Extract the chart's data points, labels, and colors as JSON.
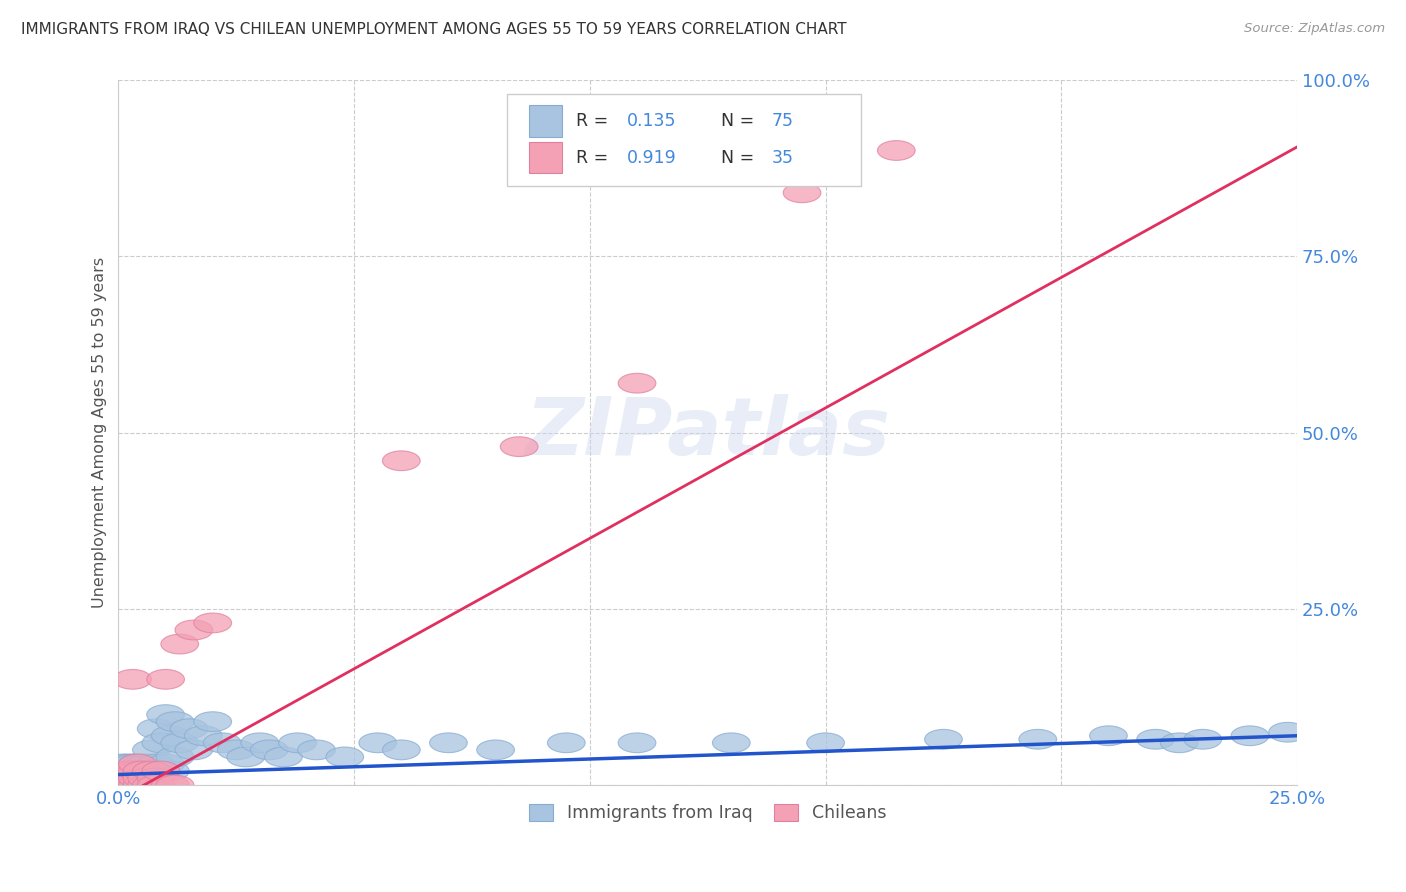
{
  "title": "IMMIGRANTS FROM IRAQ VS CHILEAN UNEMPLOYMENT AMONG AGES 55 TO 59 YEARS CORRELATION CHART",
  "source": "Source: ZipAtlas.com",
  "ylabel": "Unemployment Among Ages 55 to 59 years",
  "xlim": [
    0.0,
    0.25
  ],
  "ylim": [
    0.0,
    1.0
  ],
  "xticks": [
    0.0,
    0.05,
    0.1,
    0.15,
    0.2,
    0.25
  ],
  "yticks": [
    0.0,
    0.25,
    0.5,
    0.75,
    1.0
  ],
  "iraq_color": "#a8c4e0",
  "iraq_edge_color": "#88acd0",
  "chile_color": "#f4a0b5",
  "chile_edge_color": "#e080a0",
  "iraq_line_color": "#2255cc",
  "chile_line_color": "#e03060",
  "legend_R_iraq": "0.135",
  "legend_N_iraq": "75",
  "legend_R_chile": "0.919",
  "legend_N_chile": "35",
  "legend_label_iraq": "Immigrants from Iraq",
  "legend_label_chile": "Chileans",
  "watermark": "ZIPatlas",
  "title_color": "#333333",
  "axis_label_color": "#4488dd",
  "ylabel_color": "#555555",
  "background_color": "#ffffff",
  "grid_color": "#cccccc",
  "iraq_line_intercept": 0.015,
  "iraq_line_slope": 0.22,
  "chile_line_intercept": -0.02,
  "chile_line_slope": 3.7,
  "iraq_points_x": [
    0.001,
    0.001,
    0.001,
    0.001,
    0.001,
    0.001,
    0.002,
    0.002,
    0.002,
    0.002,
    0.002,
    0.002,
    0.002,
    0.003,
    0.003,
    0.003,
    0.003,
    0.003,
    0.003,
    0.004,
    0.004,
    0.004,
    0.004,
    0.004,
    0.005,
    0.005,
    0.005,
    0.005,
    0.006,
    0.006,
    0.006,
    0.006,
    0.007,
    0.007,
    0.007,
    0.008,
    0.008,
    0.009,
    0.009,
    0.01,
    0.01,
    0.011,
    0.011,
    0.012,
    0.012,
    0.013,
    0.015,
    0.016,
    0.018,
    0.02,
    0.022,
    0.025,
    0.027,
    0.03,
    0.032,
    0.035,
    0.038,
    0.042,
    0.048,
    0.055,
    0.06,
    0.07,
    0.08,
    0.095,
    0.11,
    0.13,
    0.15,
    0.175,
    0.195,
    0.21,
    0.22,
    0.225,
    0.23,
    0.24,
    0.248
  ],
  "iraq_points_y": [
    0.0,
    0.01,
    0.0,
    0.02,
    0.0,
    0.03,
    0.0,
    0.01,
    0.02,
    0.0,
    0.03,
    0.01,
    0.0,
    0.0,
    0.01,
    0.02,
    0.03,
    0.0,
    0.01,
    0.0,
    0.01,
    0.02,
    0.03,
    0.0,
    0.01,
    0.02,
    0.0,
    0.03,
    0.01,
    0.0,
    0.02,
    0.03,
    0.05,
    0.02,
    0.01,
    0.08,
    0.03,
    0.06,
    0.02,
    0.1,
    0.03,
    0.07,
    0.02,
    0.09,
    0.04,
    0.06,
    0.08,
    0.05,
    0.07,
    0.09,
    0.06,
    0.05,
    0.04,
    0.06,
    0.05,
    0.04,
    0.06,
    0.05,
    0.04,
    0.06,
    0.05,
    0.06,
    0.05,
    0.06,
    0.06,
    0.06,
    0.06,
    0.065,
    0.065,
    0.07,
    0.065,
    0.06,
    0.065,
    0.07,
    0.075
  ],
  "chile_points_x": [
    0.001,
    0.001,
    0.001,
    0.002,
    0.002,
    0.002,
    0.003,
    0.003,
    0.003,
    0.003,
    0.004,
    0.004,
    0.004,
    0.004,
    0.005,
    0.005,
    0.005,
    0.006,
    0.006,
    0.007,
    0.007,
    0.008,
    0.008,
    0.009,
    0.01,
    0.011,
    0.012,
    0.013,
    0.016,
    0.02,
    0.06,
    0.085,
    0.11,
    0.145,
    0.165
  ],
  "chile_points_y": [
    0.0,
    0.01,
    0.0,
    0.0,
    0.01,
    0.02,
    0.15,
    0.0,
    0.01,
    0.02,
    0.0,
    0.01,
    0.02,
    0.03,
    0.0,
    0.01,
    0.02,
    0.0,
    0.01,
    0.0,
    0.02,
    0.01,
    0.0,
    0.02,
    0.15,
    0.0,
    0.0,
    0.2,
    0.22,
    0.23,
    0.46,
    0.48,
    0.57,
    0.84,
    0.9
  ]
}
